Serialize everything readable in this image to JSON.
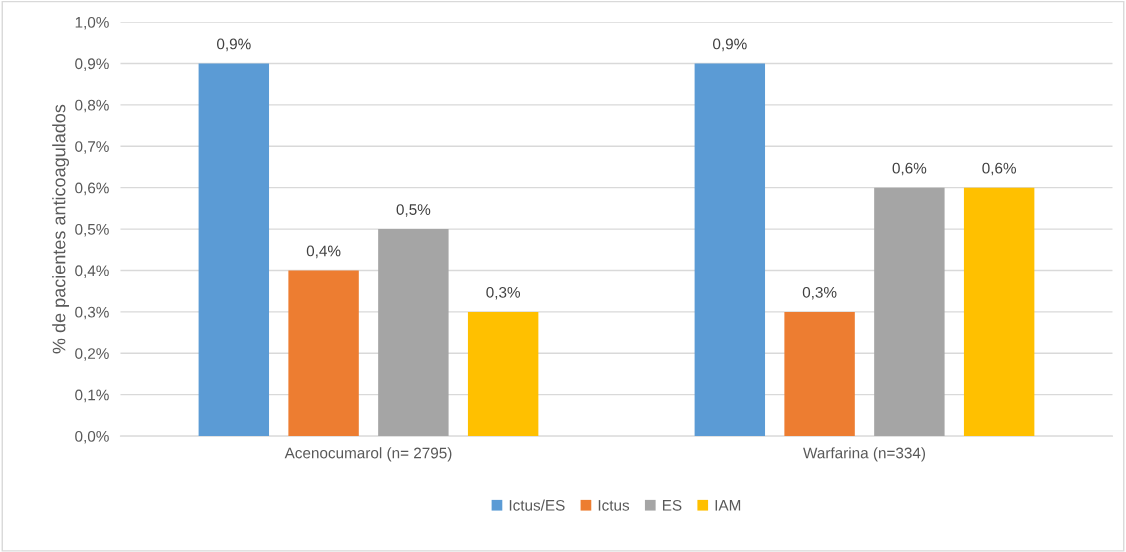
{
  "chart_data": {
    "type": "bar",
    "ylabel": "% de pacientes anticoagulados",
    "categories": [
      "Acenocumarol (n= 2795)",
      "Warfarina (n=334)"
    ],
    "series": [
      {
        "name": "Ictus/ES",
        "color": "#5b9bd5",
        "values": [
          0.9,
          0.9
        ],
        "value_labels": [
          "0,9%",
          "0,9%"
        ]
      },
      {
        "name": "Ictus",
        "color": "#ed7d31",
        "values": [
          0.4,
          0.3
        ],
        "value_labels": [
          "0,4%",
          "0,3%"
        ]
      },
      {
        "name": "ES",
        "color": "#a5a5a5",
        "values": [
          0.5,
          0.6
        ],
        "value_labels": [
          "0,5%",
          "0,6%"
        ]
      },
      {
        "name": "IAM",
        "color": "#ffc000",
        "values": [
          0.3,
          0.6
        ],
        "value_labels": [
          "0,3%",
          "0,6%"
        ]
      }
    ],
    "ylim": [
      0,
      1.0
    ],
    "yticks": [
      {
        "value": 0,
        "label": "0,0%"
      },
      {
        "value": 0.1,
        "label": "0,1%"
      },
      {
        "value": 0.2,
        "label": "0,2%"
      },
      {
        "value": 0.3,
        "label": "0,3%"
      },
      {
        "value": 0.4,
        "label": "0,4%"
      },
      {
        "value": 0.5,
        "label": "0,5%"
      },
      {
        "value": 0.6,
        "label": "0,6%"
      },
      {
        "value": 0.7,
        "label": "0,7%"
      },
      {
        "value": 0.8,
        "label": "0,8%"
      },
      {
        "value": 0.9,
        "label": "0,9%"
      },
      {
        "value": 1.0,
        "label": "1,0%"
      }
    ],
    "grid": "y",
    "legend": "bottom"
  }
}
